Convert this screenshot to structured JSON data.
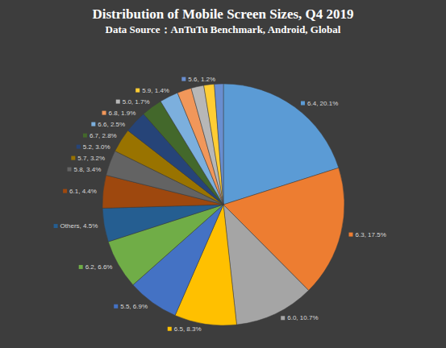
{
  "chart_data": {
    "type": "pie",
    "title": "Distribution of Mobile Screen Sizes, Q4 2019",
    "subtitle": "Data Source：AnTuTu Benchmark, Android, Global",
    "categories": [
      "6.4",
      "6.3",
      "6.0",
      "6.5",
      "5.5",
      "6.2",
      "Others",
      "6.1",
      "5.8",
      "5.7",
      "5.2",
      "6.7",
      "6.6",
      "6.8",
      "5.0",
      "5.9",
      "5.6"
    ],
    "values": [
      20.1,
      17.5,
      10.7,
      8.3,
      6.9,
      6.6,
      4.5,
      4.4,
      3.4,
      3.2,
      3.0,
      2.8,
      2.5,
      1.9,
      1.7,
      1.4,
      1.2
    ],
    "value_labels": [
      "6.4, 20.1%",
      "6.3, 17.5%",
      "6.0, 10.7%",
      "6.5, 8.3%",
      "5.5, 6.9%",
      "6.2, 6.6%",
      "Others, 4.5%",
      "6.1, 4.4%",
      "5.8, 3.4%",
      "5.7, 3.2%",
      "5.2, 3.0%",
      "6.7, 2.8%",
      "6.6, 2.5%",
      "6.8, 1.9%",
      "5.0, 1.7%",
      "5.9, 1.4%",
      "5.6, 1.2%"
    ],
    "colors": [
      "#5b9bd5",
      "#ed7d31",
      "#a5a5a5",
      "#ffc000",
      "#4472c4",
      "#70ad47",
      "#255e91",
      "#9e480e",
      "#636363",
      "#997300",
      "#264478",
      "#43682b",
      "#7cafdd",
      "#f1975a",
      "#b7b7b7",
      "#ffcd33",
      "#698ed0"
    ],
    "data_labels": true
  }
}
